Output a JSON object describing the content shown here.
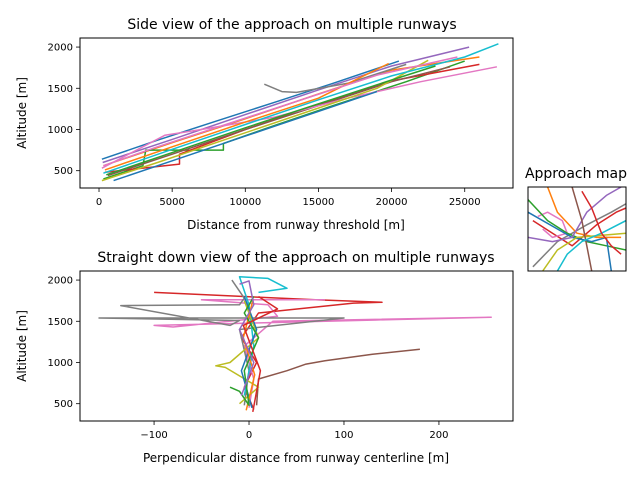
{
  "chart_data": [
    {
      "id": "side",
      "type": "line",
      "title": "Side view of the approach on multiple runways",
      "xlabel": "Distance from runway threshold [m]",
      "ylabel": "Altitude [m]",
      "xlim": [
        -1300,
        28300
      ],
      "ylim": [
        290,
        2110
      ],
      "xticks": [
        0,
        5000,
        10000,
        15000,
        20000,
        25000
      ],
      "yticks": [
        500,
        1000,
        1500,
        2000
      ],
      "grid": false,
      "series": [
        {
          "color": "#1f77b4",
          "points": [
            [
              200,
              640
            ],
            [
              4000,
              870
            ],
            [
              8000,
              1100
            ],
            [
              12000,
              1330
            ],
            [
              16000,
              1560
            ],
            [
              20500,
              1830
            ]
          ]
        },
        {
          "color": "#ff7f0e",
          "points": [
            [
              300,
              560
            ],
            [
              5000,
              840
            ],
            [
              10000,
              1130
            ],
            [
              15000,
              1430
            ],
            [
              20000,
              1720
            ],
            [
              26000,
              1880
            ]
          ]
        },
        {
          "color": "#2ca02c",
          "points": [
            [
              300,
              400
            ],
            [
              3000,
              560
            ],
            [
              3200,
              750
            ],
            [
              8500,
              750
            ],
            [
              8500,
              830
            ],
            [
              12000,
              1050
            ],
            [
              16000,
              1290
            ],
            [
              21000,
              1580
            ],
            [
              25000,
              1830
            ]
          ]
        },
        {
          "color": "#d62728",
          "points": [
            [
              400,
              480
            ],
            [
              5500,
              580
            ],
            [
              5500,
              700
            ],
            [
              10000,
              1000
            ],
            [
              15000,
              1300
            ],
            [
              20000,
              1590
            ],
            [
              26000,
              1790
            ]
          ]
        },
        {
          "color": "#9467bd",
          "points": [
            [
              250,
              600
            ],
            [
              5000,
              880
            ],
            [
              10000,
              1180
            ],
            [
              15000,
              1480
            ],
            [
              20000,
              1770
            ],
            [
              25300,
              2000
            ]
          ]
        },
        {
          "color": "#8c564b",
          "points": [
            [
              600,
              440
            ],
            [
              5000,
              700
            ],
            [
              10000,
              1000
            ],
            [
              15000,
              1290
            ],
            [
              20000,
              1580
            ],
            [
              24000,
              1760
            ]
          ]
        },
        {
          "color": "#e377c2",
          "points": [
            [
              200,
              530
            ],
            [
              4500,
              930
            ],
            [
              7000,
              1000
            ],
            [
              12000,
              1150
            ],
            [
              17000,
              1380
            ],
            [
              22000,
              1580
            ],
            [
              27200,
              1760
            ]
          ]
        },
        {
          "color": "#7f7f7f",
          "points": [
            [
              11300,
              1550
            ],
            [
              12500,
              1460
            ],
            [
              13500,
              1450
            ],
            [
              17000,
              1560
            ],
            [
              21000,
              1790
            ]
          ]
        },
        {
          "color": "#bcbd22",
          "points": [
            [
              200,
              380
            ],
            [
              4000,
              600
            ],
            [
              9000,
              900
            ],
            [
              14000,
              1200
            ],
            [
              19000,
              1500
            ],
            [
              22500,
              1840
            ]
          ]
        },
        {
          "color": "#17becf",
          "points": [
            [
              300,
              470
            ],
            [
              5000,
              760
            ],
            [
              10000,
              1060
            ],
            [
              15000,
              1360
            ],
            [
              20000,
              1650
            ],
            [
              25000,
              1880
            ],
            [
              27300,
              2040
            ]
          ]
        },
        {
          "color": "#1f77b4",
          "points": [
            [
              1000,
              380
            ],
            [
              5000,
              620
            ],
            [
              10000,
              920
            ],
            [
              15000,
              1220
            ],
            [
              19000,
              1460
            ]
          ]
        },
        {
          "color": "#ff7f0e",
          "points": [
            [
              400,
              510
            ],
            [
              5000,
              790
            ],
            [
              10000,
              1090
            ],
            [
              15000,
              1380
            ],
            [
              19800,
              1800
            ]
          ]
        },
        {
          "color": "#2ca02c",
          "points": [
            [
              500,
              450
            ],
            [
              5000,
              720
            ],
            [
              10000,
              1020
            ],
            [
              15000,
              1310
            ],
            [
              20000,
              1600
            ],
            [
              23000,
              1770
            ]
          ]
        },
        {
          "color": "#e377c2",
          "points": [
            [
              300,
              560
            ],
            [
              4000,
              790
            ],
            [
              9000,
              1080
            ],
            [
              14000,
              1370
            ],
            [
              19000,
              1660
            ],
            [
              24500,
              1880
            ]
          ]
        }
      ]
    },
    {
      "id": "top",
      "type": "line",
      "title": "Straight down view of the approach on multiple runways",
      "xlabel": "Perpendicular distance from runway centerline [m]",
      "ylabel": "Altitude [m]",
      "xlim": [
        -178,
        278
      ],
      "ylim": [
        290,
        2110
      ],
      "xticks": [
        -100,
        0,
        100,
        200
      ],
      "yticks": [
        500,
        1000,
        1500,
        2000
      ],
      "grid": false,
      "series": [
        {
          "color": "#d62728",
          "points": [
            [
              5,
              430
            ],
            [
              -5,
              700
            ],
            [
              8,
              1000
            ],
            [
              -8,
              1300
            ],
            [
              10,
              1600
            ],
            [
              110,
              1720
            ],
            [
              140,
              1730
            ],
            [
              70,
              1760
            ],
            [
              -100,
              1850
            ]
          ]
        },
        {
          "color": "#e377c2",
          "points": [
            [
              0,
              450
            ],
            [
              5,
              800
            ],
            [
              -5,
              1200
            ],
            [
              25,
              1500
            ],
            [
              255,
              1550
            ],
            [
              -100,
              1450
            ],
            [
              -80,
              1430
            ],
            [
              30,
              1560
            ],
            [
              20,
              1700
            ],
            [
              -50,
              1760
            ],
            [
              80,
              1760
            ]
          ]
        },
        {
          "color": "#7f7f7f",
          "points": [
            [
              -5,
              480
            ],
            [
              0,
              900
            ],
            [
              -10,
              1400
            ],
            [
              100,
              1540
            ],
            [
              -158,
              1540
            ],
            [
              -10,
              1510
            ],
            [
              -20,
              1450
            ],
            [
              -135,
              1690
            ],
            [
              -10,
              1700
            ],
            [
              -5,
              1780
            ],
            [
              -18,
              2000
            ]
          ]
        },
        {
          "color": "#8c564b",
          "points": [
            [
              8,
              480
            ],
            [
              10,
              800
            ],
            [
              40,
              900
            ],
            [
              60,
              980
            ],
            [
              80,
              1020
            ],
            [
              130,
              1100
            ],
            [
              180,
              1160
            ]
          ]
        },
        {
          "color": "#17becf",
          "points": [
            [
              -5,
              600
            ],
            [
              5,
              1200
            ],
            [
              0,
              1700
            ],
            [
              -10,
              2040
            ],
            [
              20,
              2020
            ],
            [
              40,
              1900
            ],
            [
              10,
              1850
            ]
          ]
        },
        {
          "color": "#bcbd22",
          "points": [
            [
              -10,
              500
            ],
            [
              10,
              700
            ],
            [
              -25,
              940
            ],
            [
              -35,
              960
            ],
            [
              -20,
              1000
            ],
            [
              10,
              1300
            ],
            [
              -5,
              1750
            ]
          ]
        },
        {
          "color": "#1f77b4",
          "points": [
            [
              3,
              450
            ],
            [
              -8,
              900
            ],
            [
              8,
              1400
            ],
            [
              -5,
              1800
            ]
          ]
        },
        {
          "color": "#ff7f0e",
          "points": [
            [
              -3,
              420
            ],
            [
              6,
              850
            ],
            [
              -6,
              1300
            ],
            [
              4,
              1750
            ]
          ]
        },
        {
          "color": "#2ca02c",
          "points": [
            [
              -20,
              700
            ],
            [
              -10,
              650
            ],
            [
              0,
              480
            ],
            [
              -5,
              900
            ],
            [
              10,
              1300
            ],
            [
              -5,
              1600
            ],
            [
              5,
              1800
            ]
          ]
        },
        {
          "color": "#9467bd",
          "points": [
            [
              -10,
              1950
            ],
            [
              0,
              1990
            ],
            [
              5,
              1700
            ],
            [
              -10,
              1400
            ],
            [
              5,
              1000
            ],
            [
              -8,
              600
            ]
          ]
        },
        {
          "color": "#d62728",
          "points": [
            [
              4,
              400
            ],
            [
              12,
              900
            ],
            [
              -6,
              1450
            ],
            [
              30,
              1650
            ],
            [
              10,
              1800
            ]
          ]
        }
      ]
    },
    {
      "id": "map",
      "type": "line",
      "title": "Approach map",
      "xlim": [
        0,
        100
      ],
      "ylim": [
        0,
        100
      ],
      "axes_visible": false,
      "series": [
        {
          "color": "#7f7f7f",
          "points": [
            [
              5,
              5
            ],
            [
              30,
              35
            ],
            [
              60,
              55
            ],
            [
              85,
              70
            ],
            [
              100,
              80
            ]
          ]
        },
        {
          "color": "#d62728",
          "points": [
            [
              5,
              60
            ],
            [
              25,
              45
            ],
            [
              45,
              30
            ],
            [
              55,
              40
            ],
            [
              70,
              55
            ],
            [
              90,
              70
            ],
            [
              100,
              75
            ]
          ]
        },
        {
          "color": "#e377c2",
          "points": [
            [
              10,
              65
            ],
            [
              20,
              70
            ],
            [
              35,
              60
            ],
            [
              40,
              45
            ],
            [
              25,
              40
            ],
            [
              15,
              50
            ]
          ]
        },
        {
          "color": "#2ca02c",
          "points": [
            [
              0,
              85
            ],
            [
              20,
              60
            ],
            [
              40,
              45
            ],
            [
              60,
              35
            ],
            [
              80,
              30
            ],
            [
              100,
              25
            ]
          ]
        },
        {
          "color": "#1f77b4",
          "points": [
            [
              0,
              70
            ],
            [
              30,
              50
            ],
            [
              45,
              40
            ],
            [
              65,
              35
            ],
            [
              80,
              40
            ],
            [
              85,
              0
            ]
          ]
        },
        {
          "color": "#ff7f0e",
          "points": [
            [
              20,
              100
            ],
            [
              30,
              70
            ],
            [
              50,
              45
            ],
            [
              70,
              40
            ],
            [
              95,
              40
            ]
          ]
        },
        {
          "color": "#bcbd22",
          "points": [
            [
              15,
              0
            ],
            [
              30,
              25
            ],
            [
              50,
              40
            ],
            [
              70,
              42
            ],
            [
              100,
              45
            ]
          ]
        },
        {
          "color": "#9467bd",
          "points": [
            [
              0,
              40
            ],
            [
              25,
              35
            ],
            [
              45,
              40
            ],
            [
              60,
              70
            ],
            [
              80,
              90
            ],
            [
              95,
              100
            ]
          ]
        },
        {
          "color": "#8c564b",
          "points": [
            [
              45,
              100
            ],
            [
              50,
              80
            ],
            [
              55,
              60
            ],
            [
              60,
              30
            ],
            [
              65,
              0
            ]
          ]
        },
        {
          "color": "#17becf",
          "points": [
            [
              30,
              0
            ],
            [
              40,
              20
            ],
            [
              55,
              35
            ],
            [
              75,
              45
            ],
            [
              100,
              60
            ]
          ]
        },
        {
          "color": "#d62728",
          "points": [
            [
              55,
              95
            ],
            [
              65,
              75
            ],
            [
              70,
              60
            ],
            [
              75,
              45
            ],
            [
              85,
              30
            ],
            [
              95,
              20
            ]
          ]
        }
      ]
    }
  ]
}
